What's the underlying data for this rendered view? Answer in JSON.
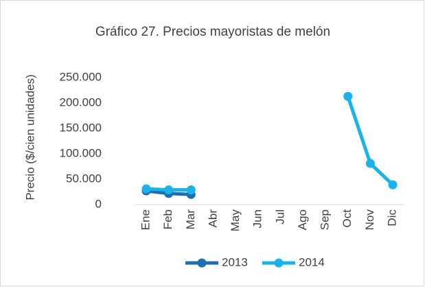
{
  "chart_data": {
    "type": "line",
    "title": "Gráfico 27. Precios mayoristas de melón",
    "y_label": "Precio ($/cien unidades)",
    "categories": [
      "Ene",
      "Feb",
      "Mar",
      "Abr",
      "May",
      "Jun",
      "Jul",
      "Ago",
      "Sep",
      "Oct",
      "Nov",
      "Dic"
    ],
    "series": [
      {
        "name": "2013",
        "color": "#1f6db3",
        "values": [
          27000,
          22000,
          20000,
          null,
          null,
          null,
          null,
          null,
          null,
          null,
          null,
          null
        ]
      },
      {
        "name": "2014",
        "color": "#1ab2ea",
        "values": [
          31000,
          29000,
          29000,
          null,
          null,
          null,
          null,
          null,
          null,
          213000,
          81000,
          39000
        ]
      }
    ],
    "ylim": [
      0,
      250000
    ],
    "yticks": [
      0,
      {
        "value": 50000,
        "label": "50.000"
      },
      {
        "value": 100000,
        "label": "100.000"
      },
      {
        "value": 150000,
        "label": "150.000"
      },
      {
        "value": 200000,
        "label": "200.000"
      },
      {
        "value": 250000,
        "label": "250.000"
      }
    ],
    "grid": false,
    "legend": "bottom"
  }
}
